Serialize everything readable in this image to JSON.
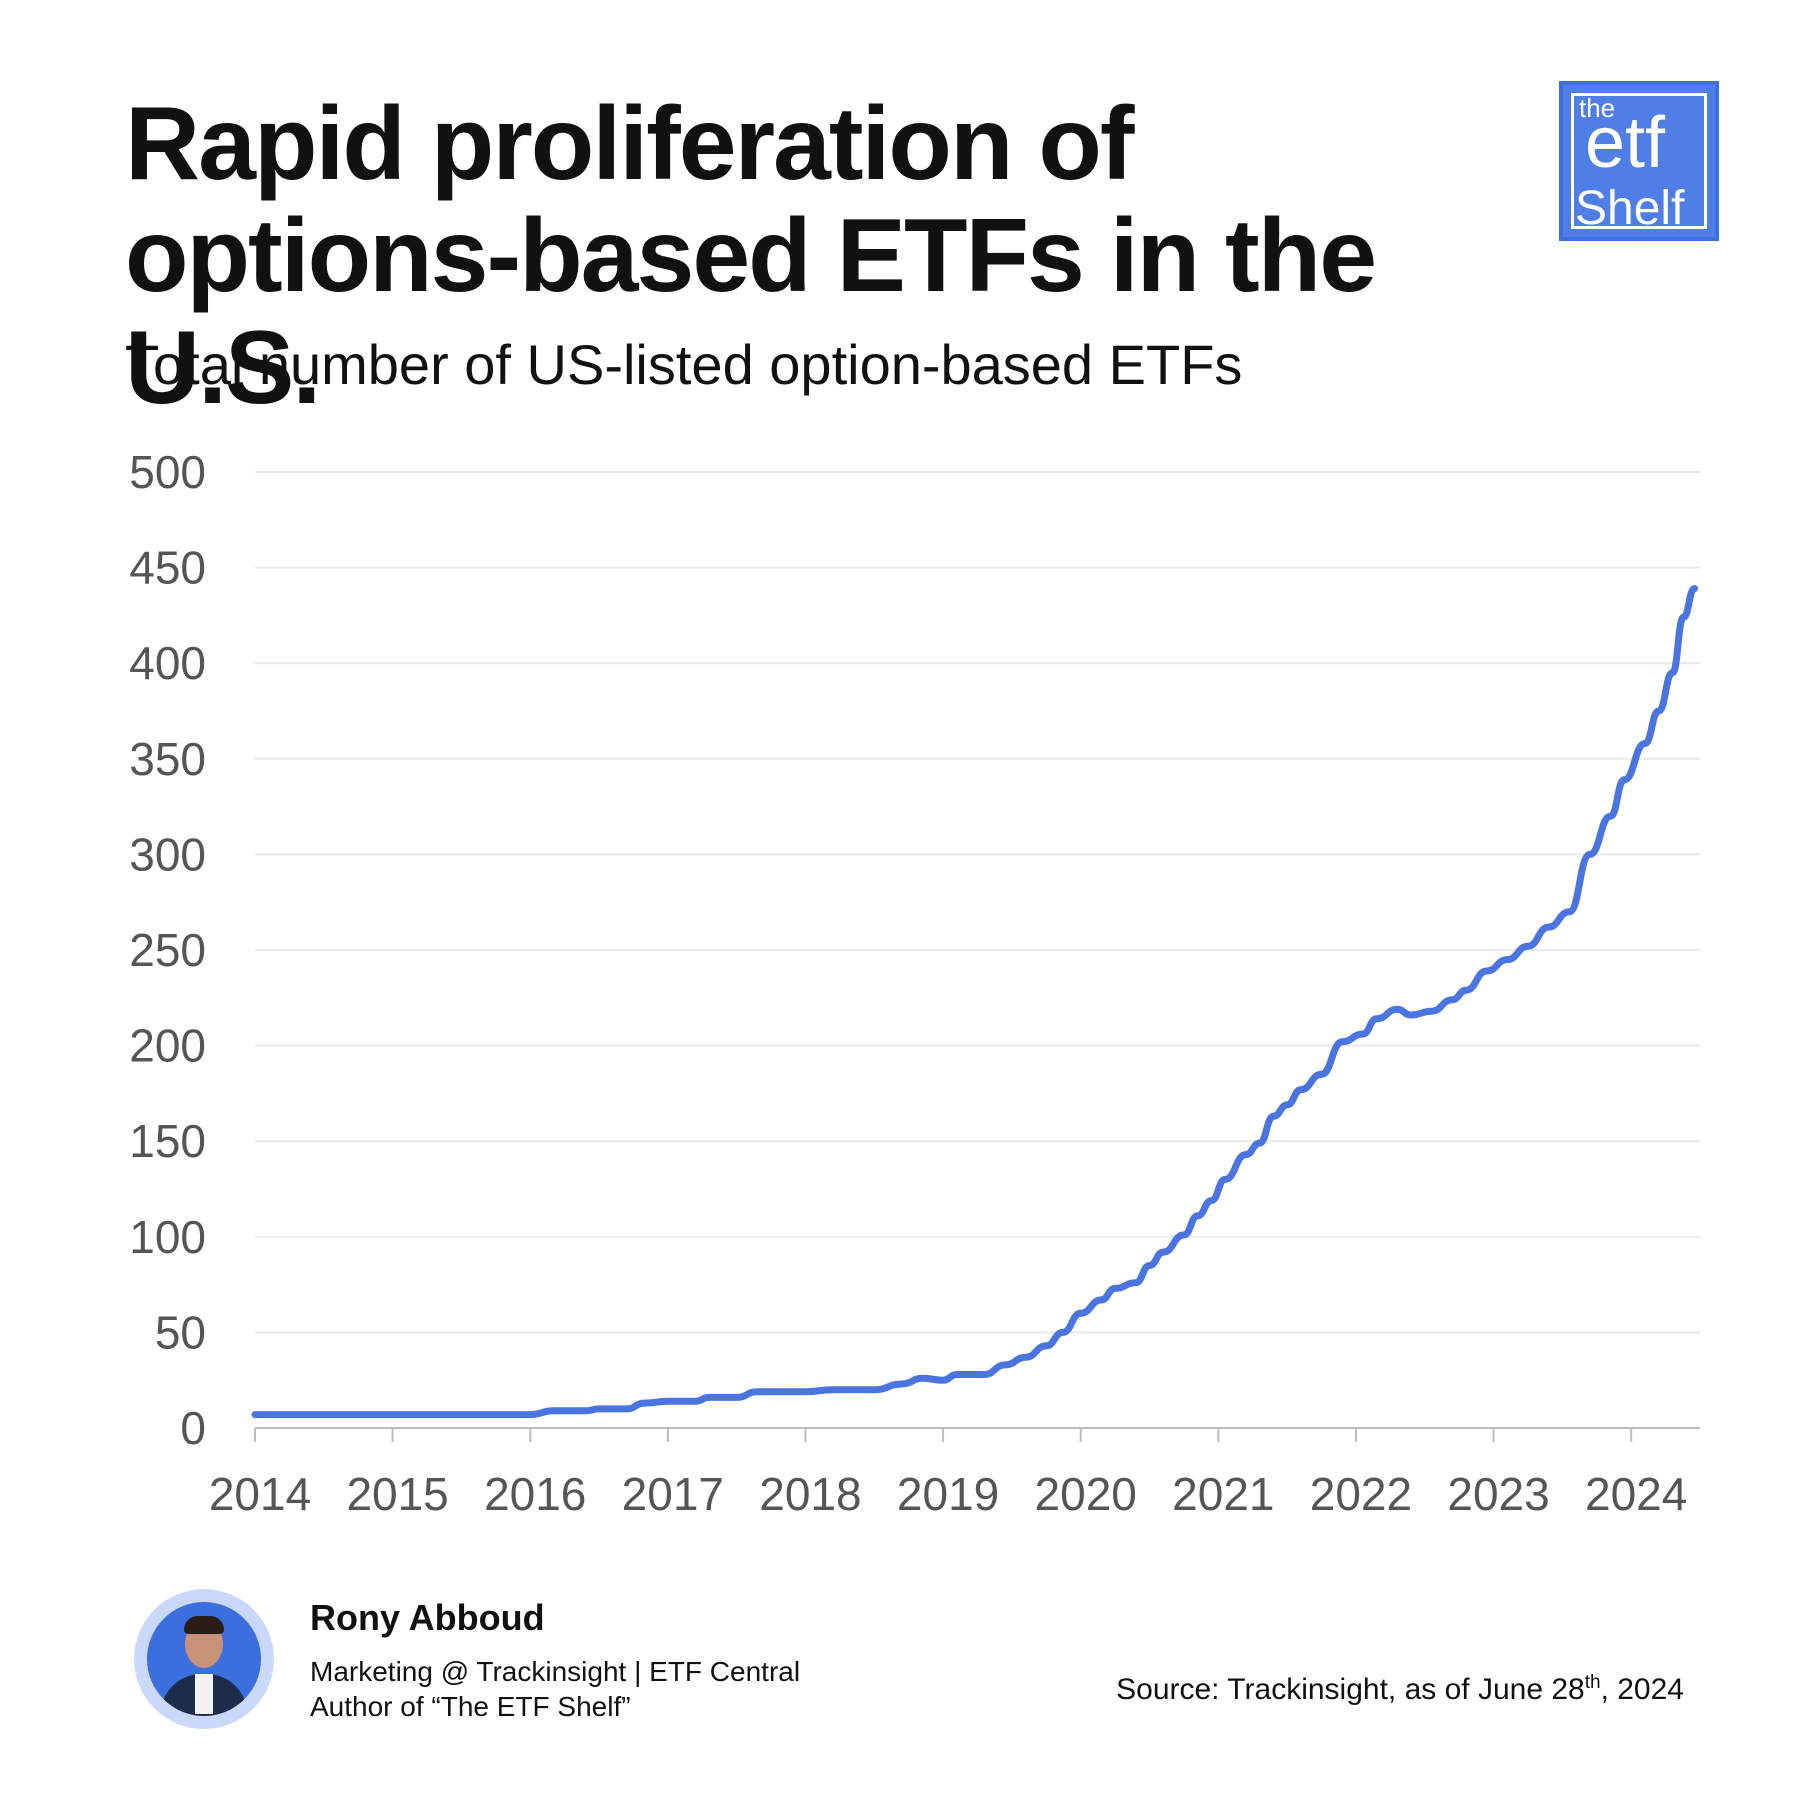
{
  "header": {
    "title": "Rapid proliferation of options-based ETFs in the U.S.",
    "subtitle": "Total number of US-listed option-based ETFs"
  },
  "logo": {
    "the": "the",
    "etf": "etf",
    "shelf": "Shelf",
    "color": "#4f7ee6"
  },
  "chart_data": {
    "type": "line",
    "title": "Total number of US-listed option-based ETFs",
    "xlabel": "",
    "ylabel": "",
    "xlim": [
      2014,
      2024.5
    ],
    "ylim": [
      0,
      500
    ],
    "y_ticks": [
      0,
      50,
      100,
      150,
      200,
      250,
      300,
      350,
      400,
      450,
      500
    ],
    "x_ticks": [
      2014,
      2015,
      2016,
      2017,
      2018,
      2019,
      2020,
      2021,
      2022,
      2023,
      2024
    ],
    "grid": true,
    "line_color": "#4a74e0",
    "series": [
      {
        "values": [
          [
            2014.0,
            7
          ],
          [
            2014.5,
            7
          ],
          [
            2015.0,
            7
          ],
          [
            2015.5,
            7
          ],
          [
            2016.0,
            7
          ],
          [
            2016.17,
            9
          ],
          [
            2016.4,
            9
          ],
          [
            2016.5,
            10
          ],
          [
            2016.7,
            10
          ],
          [
            2016.83,
            13
          ],
          [
            2017.0,
            14
          ],
          [
            2017.2,
            14
          ],
          [
            2017.3,
            16
          ],
          [
            2017.5,
            16
          ],
          [
            2017.65,
            19
          ],
          [
            2017.85,
            19
          ],
          [
            2018.0,
            19
          ],
          [
            2018.2,
            20
          ],
          [
            2018.5,
            20
          ],
          [
            2018.7,
            23
          ],
          [
            2018.85,
            26
          ],
          [
            2019.0,
            25
          ],
          [
            2019.1,
            28
          ],
          [
            2019.3,
            28
          ],
          [
            2019.45,
            33
          ],
          [
            2019.6,
            37
          ],
          [
            2019.75,
            43
          ],
          [
            2019.87,
            50
          ],
          [
            2020.0,
            60
          ],
          [
            2020.15,
            67
          ],
          [
            2020.25,
            73
          ],
          [
            2020.4,
            76
          ],
          [
            2020.5,
            85
          ],
          [
            2020.6,
            92
          ],
          [
            2020.75,
            101
          ],
          [
            2020.85,
            111
          ],
          [
            2020.95,
            119
          ],
          [
            2021.05,
            130
          ],
          [
            2021.2,
            143
          ],
          [
            2021.3,
            149
          ],
          [
            2021.4,
            163
          ],
          [
            2021.5,
            169
          ],
          [
            2021.6,
            177
          ],
          [
            2021.75,
            185
          ],
          [
            2021.9,
            202
          ],
          [
            2022.05,
            206
          ],
          [
            2022.15,
            214
          ],
          [
            2022.3,
            219
          ],
          [
            2022.4,
            216
          ],
          [
            2022.55,
            218
          ],
          [
            2022.7,
            224
          ],
          [
            2022.8,
            229
          ],
          [
            2022.95,
            239
          ],
          [
            2023.1,
            245
          ],
          [
            2023.25,
            252
          ],
          [
            2023.4,
            262
          ],
          [
            2023.55,
            270
          ],
          [
            2023.7,
            300
          ],
          [
            2023.85,
            320
          ],
          [
            2023.95,
            339
          ],
          [
            2024.1,
            358
          ],
          [
            2024.2,
            375
          ],
          [
            2024.3,
            395
          ],
          [
            2024.38,
            424
          ],
          [
            2024.46,
            439
          ]
        ]
      }
    ]
  },
  "footer": {
    "author_name": "Rony Abboud",
    "author_role": "Marketing @ Trackinsight | ETF Central",
    "author_book": "Author of “The ETF Shelf”",
    "source_prefix": "Source: Trackinsight, as of June 28",
    "source_sup": "th",
    "source_suffix": ", 2024"
  }
}
